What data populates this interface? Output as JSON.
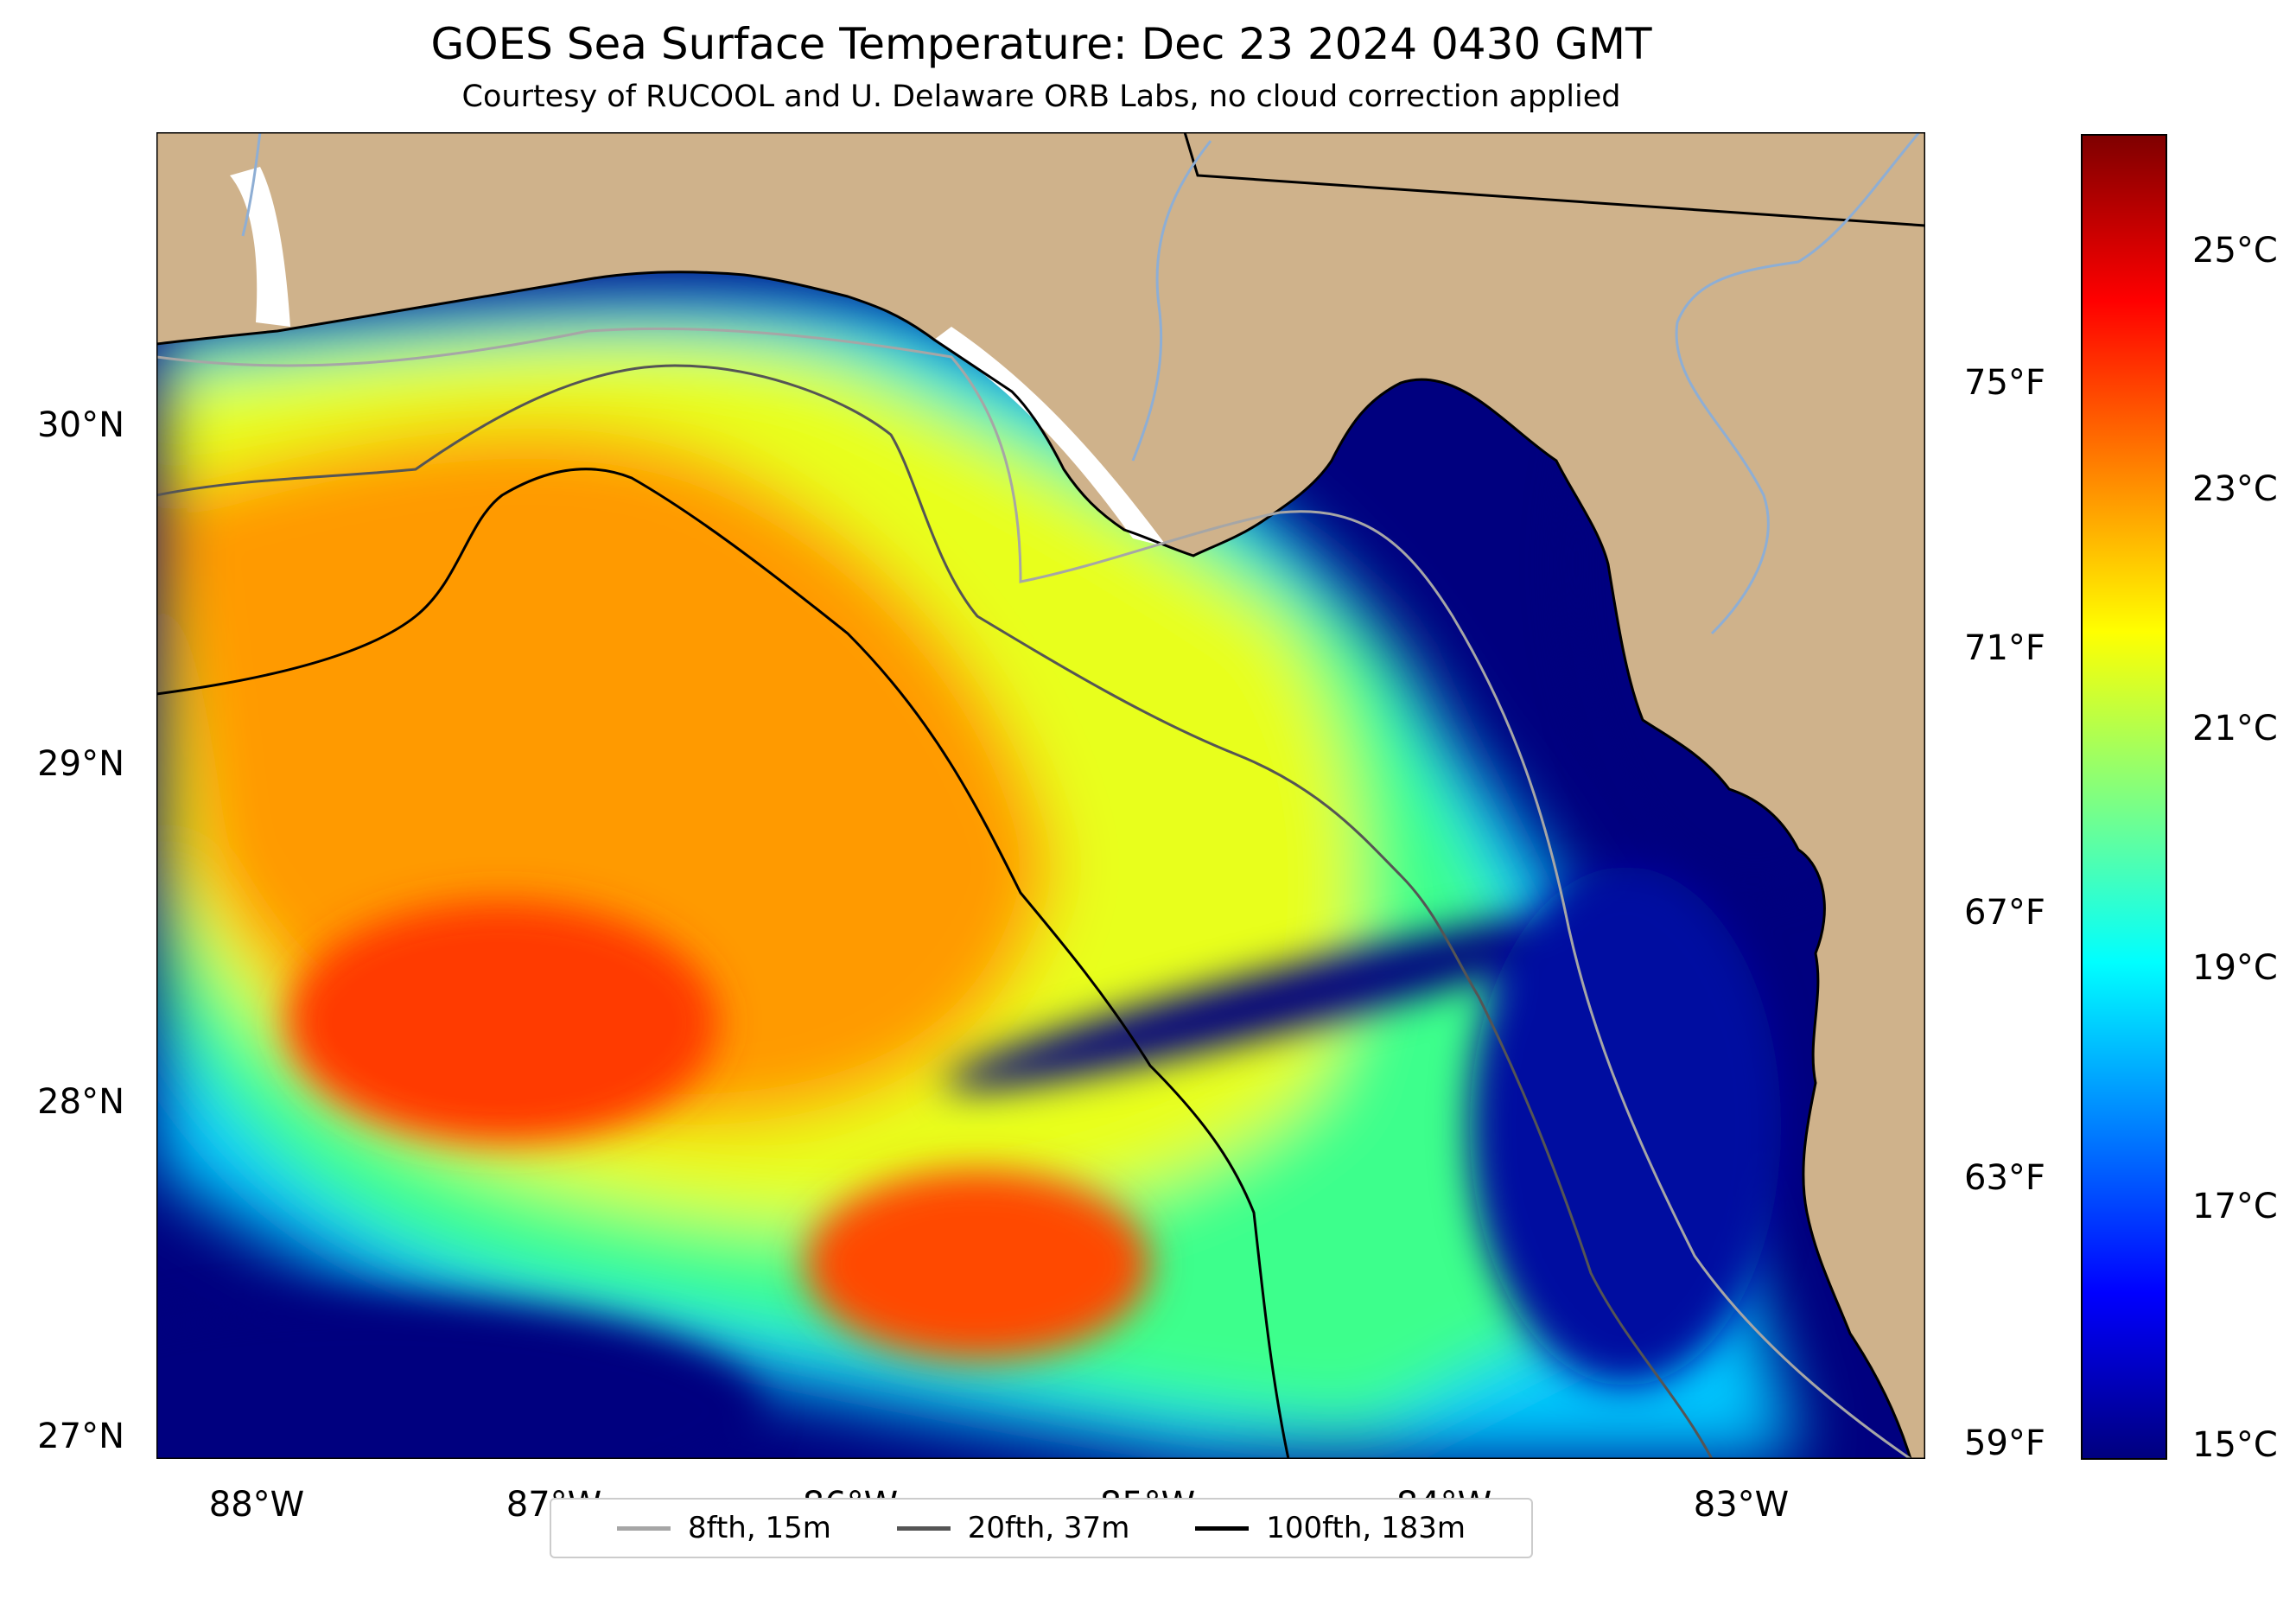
{
  "title": "GOES Sea Surface Temperature: Dec 23 2024 0430 GMT",
  "subtitle": "Courtesy of RUCOOL and U. Delaware ORB Labs, no cloud correction applied",
  "map": {
    "latitude_labels": [
      "30°N",
      "29°N",
      "28°N",
      "27°N"
    ],
    "longitude_labels": [
      "88°W",
      "87°W",
      "86°W",
      "85°W",
      "84°W",
      "83°W"
    ],
    "fahrenheit_labels": [
      "75°F",
      "71°F",
      "67°F",
      "63°F",
      "59°F"
    ],
    "colors": {
      "land": "#cfb28b",
      "cold": "#00007f",
      "cool": "#00a0ff",
      "mid": "#2cff9c",
      "warm": "#f0ff1a",
      "hot": "#ff9a00",
      "hotter": "#ff3a00",
      "no_data": "#ffffff"
    }
  },
  "colorbar": {
    "labels": [
      "25°C",
      "23°C",
      "21°C",
      "19°C",
      "17°C",
      "15°C"
    ],
    "stops": [
      "#00007f",
      "#0000ff",
      "#0080ff",
      "#00ffff",
      "#80ff80",
      "#ffff00",
      "#ff8000",
      "#ff0000",
      "#7f0000"
    ]
  },
  "legend": {
    "items": [
      {
        "label": "8fth, 15m",
        "color": "#a6a6a6"
      },
      {
        "label": "20fth, 37m",
        "color": "#555555"
      },
      {
        "label": "100fth, 183m",
        "color": "#000000"
      }
    ]
  }
}
